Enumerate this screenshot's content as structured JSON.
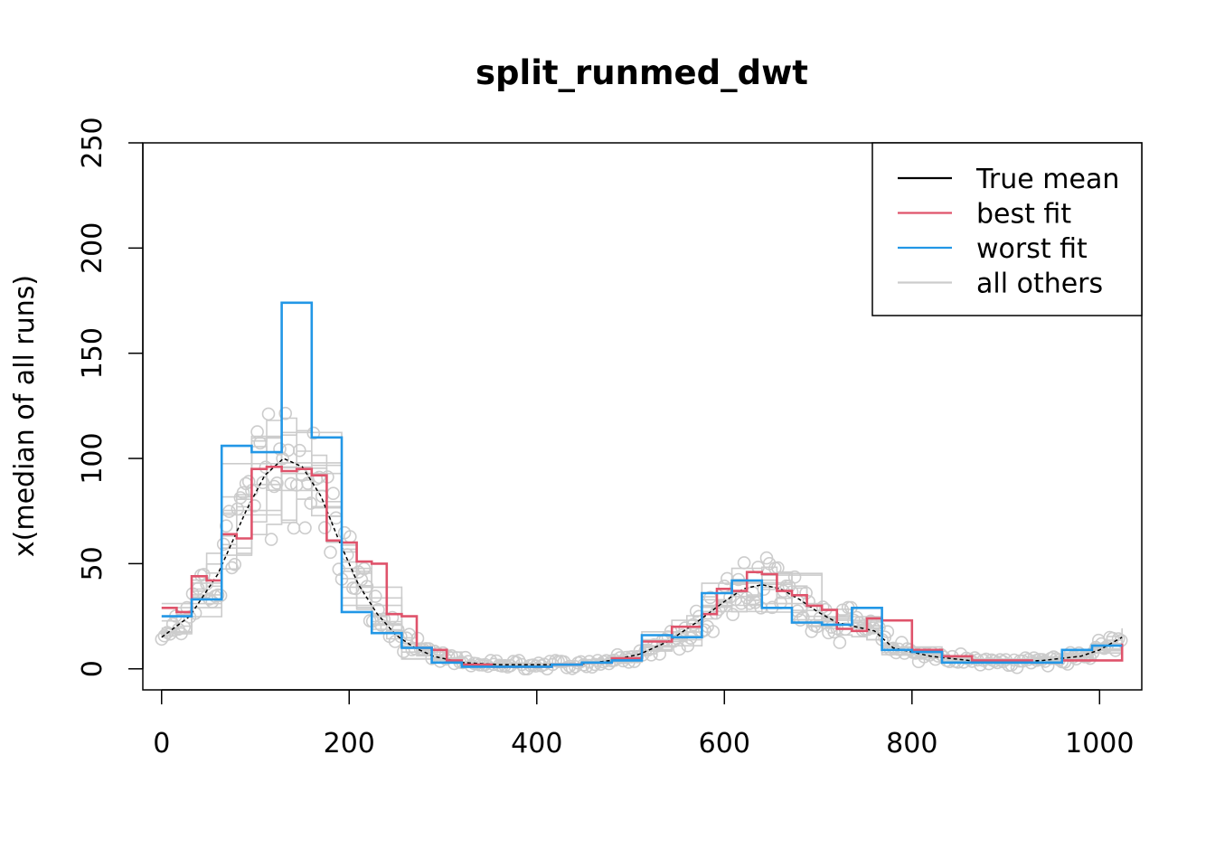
{
  "chart_data": {
    "type": "line",
    "title": "split_runmed_dwt",
    "xlabel": "",
    "ylabel": "x(median of all runs)",
    "xlim": [
      -20,
      1045
    ],
    "ylim": [
      -10,
      250
    ],
    "xticks": [
      0,
      200,
      400,
      600,
      800,
      1000
    ],
    "yticks": [
      0,
      50,
      100,
      150,
      200,
      250
    ],
    "grid": false,
    "legend_position": "top-right",
    "colors": {
      "true_mean": "#000000",
      "best_fit": "#df536b",
      "worst_fit": "#2297e6",
      "others": "#cccccc"
    },
    "legend": [
      {
        "key": "true",
        "label": "True mean",
        "color": "#000000"
      },
      {
        "key": "best",
        "label": "best fit",
        "color": "#df536b"
      },
      {
        "key": "worst",
        "label": "worst fit",
        "color": "#2297e6"
      },
      {
        "key": "others",
        "label": "all others",
        "color": "#cccccc"
      }
    ],
    "series": [
      {
        "key": "true",
        "label": "True mean",
        "style": "dashed",
        "x": [
          0,
          30,
          60,
          90,
          110,
          130,
          150,
          170,
          190,
          210,
          230,
          250,
          270,
          290,
          320,
          360,
          400,
          440,
          480,
          510,
          540,
          570,
          600,
          620,
          640,
          660,
          680,
          700,
          720,
          740,
          760,
          780,
          820,
          860,
          900,
          940,
          980,
          1000,
          1024
        ],
        "y": [
          15,
          25,
          45,
          75,
          92,
          100,
          96,
          82,
          60,
          40,
          26,
          16,
          10,
          6,
          3,
          2,
          2,
          2,
          4,
          7,
          13,
          22,
          32,
          38,
          40,
          38,
          33,
          27,
          22,
          20,
          18,
          10,
          6,
          4,
          3,
          4,
          6,
          9,
          15
        ]
      },
      {
        "key": "best",
        "label": "best fit",
        "style": "step",
        "x": [
          0,
          16,
          32,
          48,
          64,
          80,
          96,
          112,
          128,
          144,
          160,
          176,
          192,
          208,
          224,
          240,
          256,
          272,
          288,
          304,
          320,
          352,
          384,
          416,
          448,
          480,
          512,
          544,
          576,
          592,
          608,
          624,
          640,
          656,
          672,
          688,
          704,
          720,
          736,
          752,
          768,
          800,
          832,
          864,
          896,
          928,
          960,
          992,
          1024
        ],
        "y": [
          29,
          27,
          44,
          42,
          64,
          62,
          95,
          96,
          94,
          95,
          92,
          61,
          60,
          51,
          50,
          26,
          25,
          10,
          9,
          4,
          2,
          1,
          1,
          2,
          3,
          5,
          13,
          20,
          26,
          38,
          37,
          46,
          45,
          37,
          35,
          30,
          28,
          19,
          18,
          24,
          23,
          9,
          6,
          4,
          4,
          3,
          4,
          4,
          12
        ]
      },
      {
        "key": "worst",
        "label": "worst fit",
        "style": "step",
        "x": [
          0,
          16,
          32,
          64,
          96,
          128,
          160,
          192,
          224,
          256,
          288,
          320,
          352,
          384,
          416,
          448,
          480,
          512,
          544,
          576,
          608,
          640,
          672,
          704,
          736,
          768,
          800,
          832,
          864,
          896,
          928,
          960,
          992,
          1024
        ],
        "y": [
          25,
          25,
          33,
          106,
          103,
          174,
          110,
          27,
          17,
          10,
          3,
          1,
          1,
          1,
          2,
          3,
          4,
          16,
          15,
          36,
          42,
          29,
          22,
          21,
          29,
          9,
          8,
          3,
          3,
          3,
          3,
          9,
          11,
          11
        ]
      }
    ]
  }
}
